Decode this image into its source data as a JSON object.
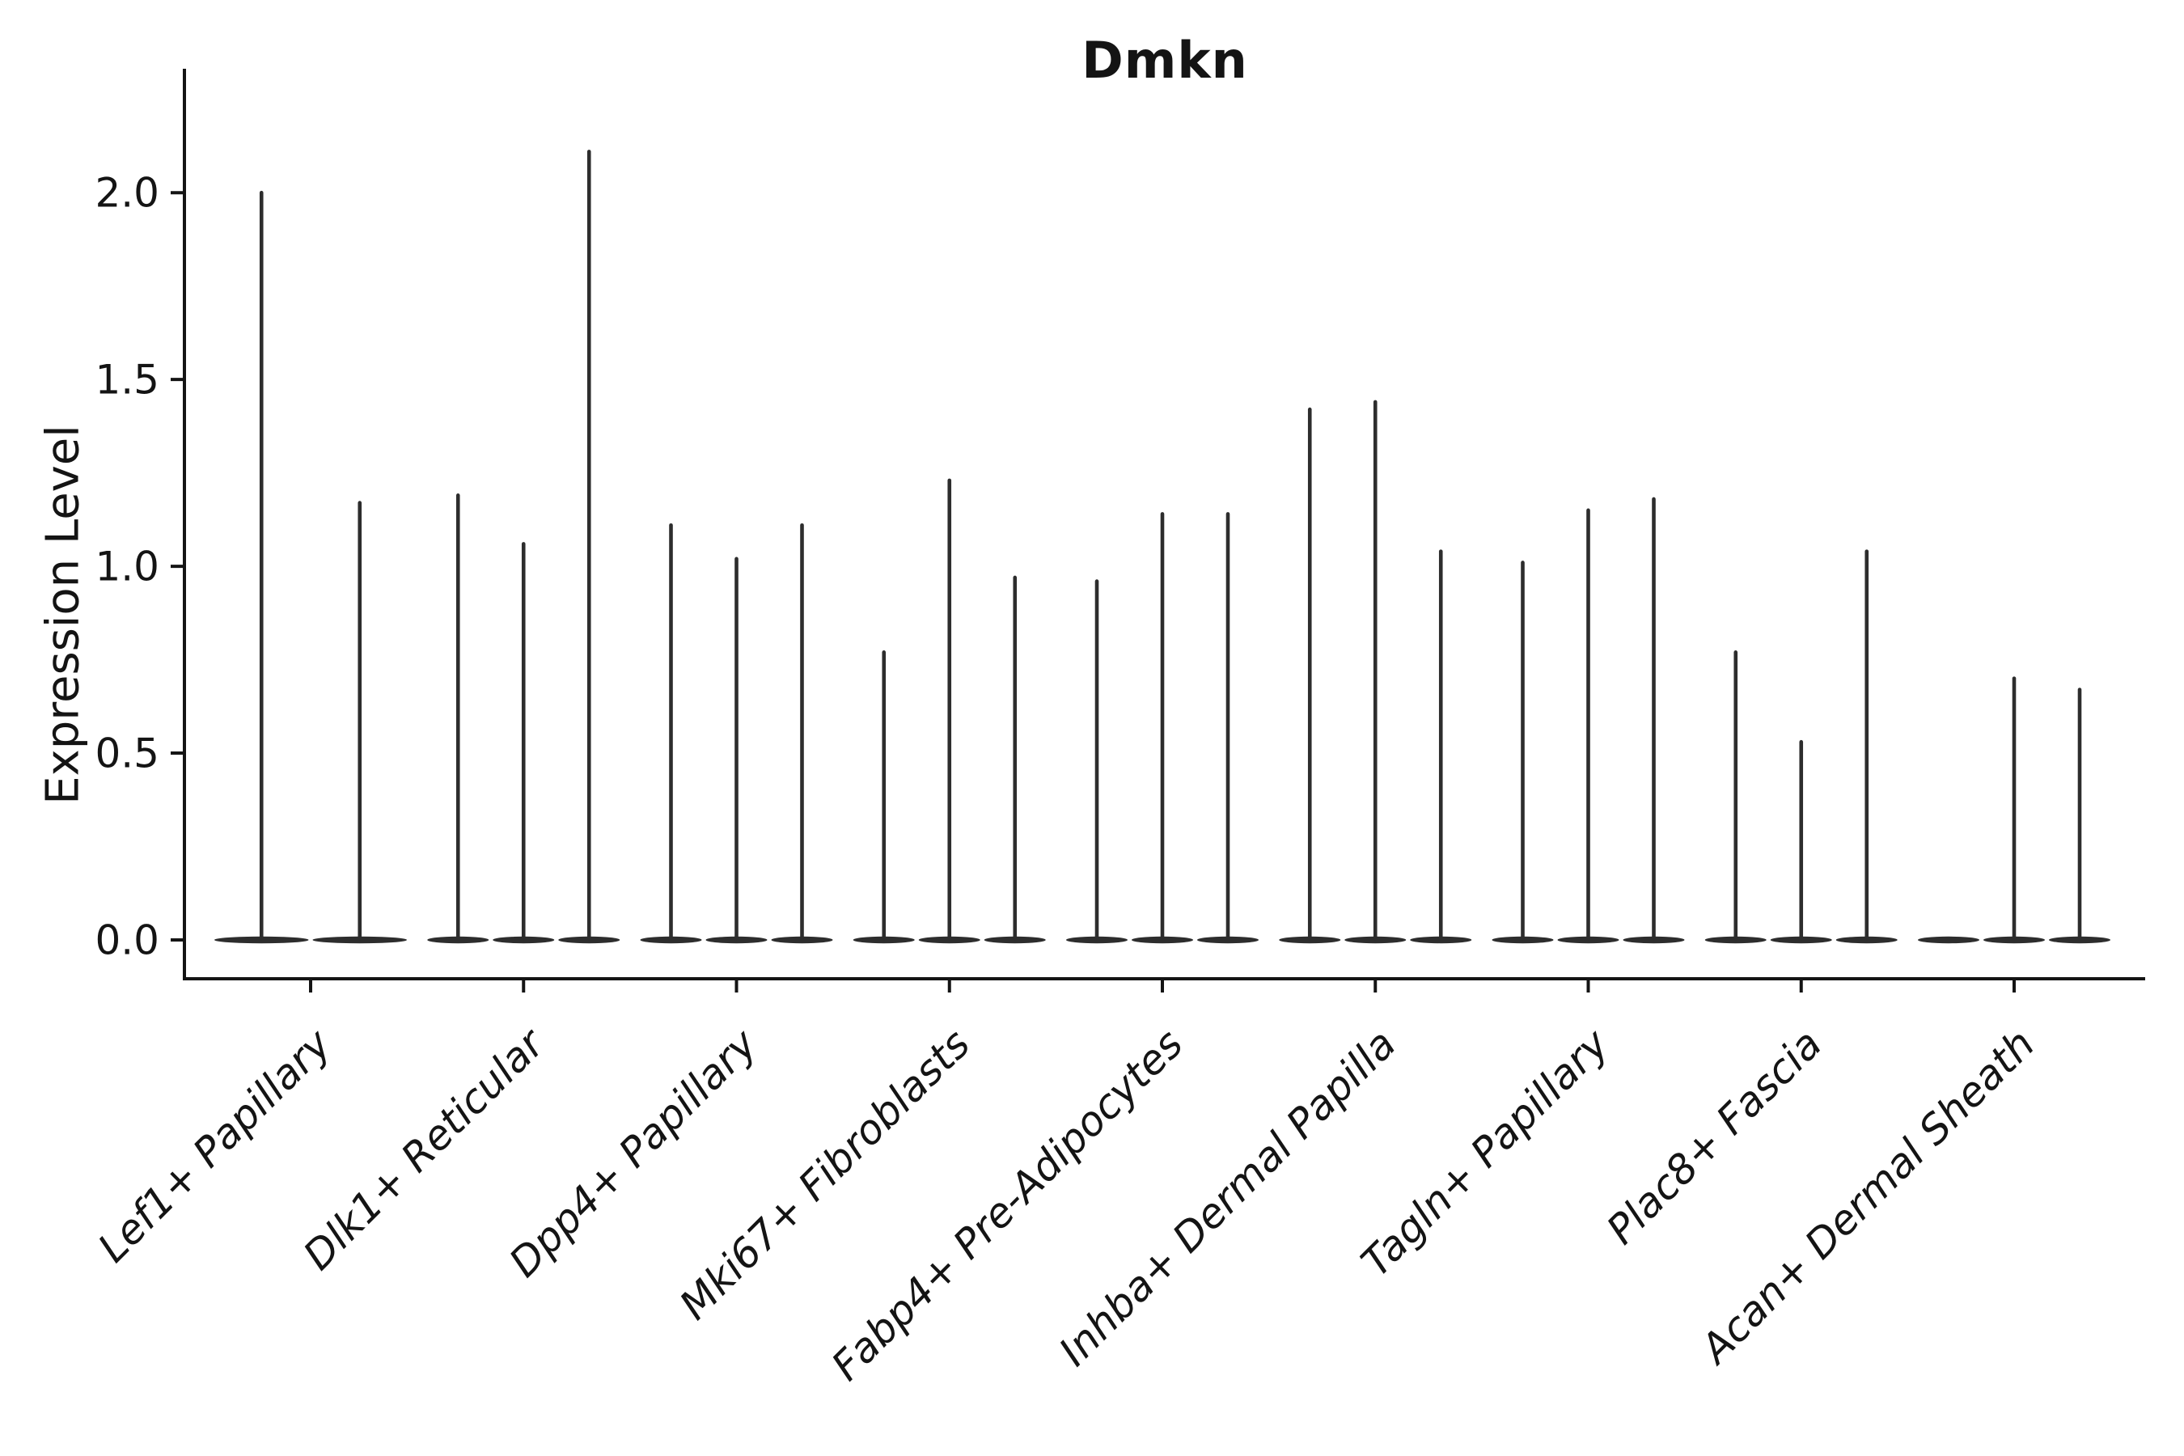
{
  "chart_data": {
    "type": "violin",
    "title": "Dmkn",
    "xlabel": "",
    "ylabel": "Expression Level",
    "ylim": [
      -0.1,
      2.33
    ],
    "yticks": [
      0.0,
      0.5,
      1.0,
      1.5,
      2.0
    ],
    "ytick_labels": [
      "0.0",
      "0.5",
      "1.0",
      "1.5",
      "2.0"
    ],
    "grid": false,
    "legend": "none",
    "categories": [
      "Lef1+ Papillary",
      "Dlk1+ Reticular",
      "Dpp4+ Papillary",
      "Mki67+ Fibroblasts",
      "Fabp4+ Pre-Adipocytes",
      "Inhba+ Dermal Papilla",
      "Tagln+ Papillary",
      "Plac8+ Fascia",
      "Acan+ Dermal Sheath"
    ],
    "groups": [
      {
        "category": "Lef1+ Papillary",
        "violin_peaks": [
          2.0,
          1.17
        ]
      },
      {
        "category": "Dlk1+ Reticular",
        "violin_peaks": [
          1.19,
          1.06,
          2.11
        ]
      },
      {
        "category": "Dpp4+ Papillary",
        "violin_peaks": [
          1.11,
          1.02,
          1.11
        ]
      },
      {
        "category": "Mki67+ Fibroblasts",
        "violin_peaks": [
          0.77,
          1.23,
          0.97
        ]
      },
      {
        "category": "Fabp4+ Pre-Adipocytes",
        "violin_peaks": [
          0.96,
          1.14,
          1.14
        ]
      },
      {
        "category": "Inhba+ Dermal Papilla",
        "violin_peaks": [
          1.42,
          1.44,
          1.04
        ]
      },
      {
        "category": "Tagln+ Papillary",
        "violin_peaks": [
          1.01,
          1.15,
          1.18
        ]
      },
      {
        "category": "Plac8+ Fascia",
        "violin_peaks": [
          0.77,
          0.53,
          1.04
        ]
      },
      {
        "category": "Acan+ Dermal Sheath",
        "violin_peaks": [
          0.0,
          0.7,
          0.67
        ]
      }
    ],
    "annotation": "all violins collapsed at 0 with thin density tails reaching listed peak expression values"
  },
  "colors": {
    "background": "#ffffff",
    "text": "#141414",
    "spine": "#141414",
    "violin": "#2d2d2d"
  }
}
